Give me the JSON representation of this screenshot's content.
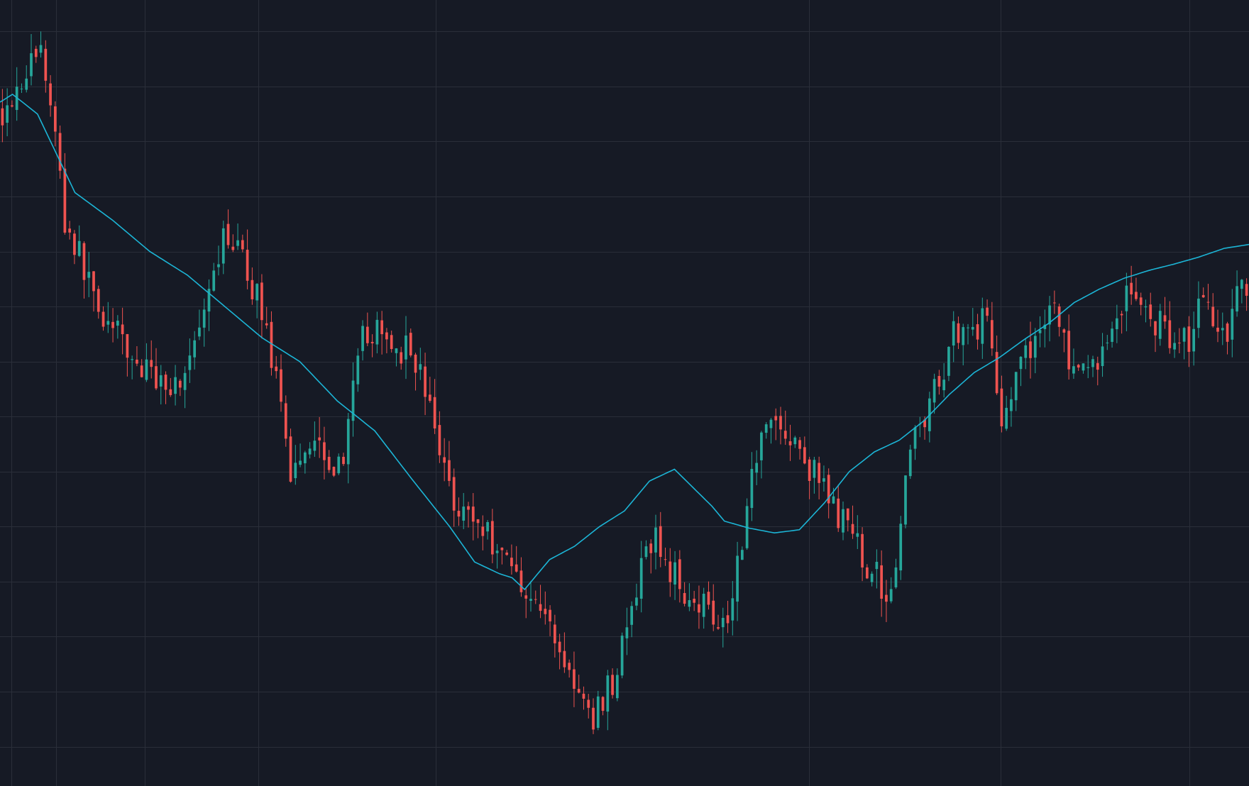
{
  "theme": {
    "background": "#161a25",
    "grid_color": "#2a2e39",
    "up_color": "#26a69a",
    "down_color": "#ef5350",
    "ma_color": "#1cb5d6"
  },
  "chart_data": {
    "type": "candlestick",
    "title": "",
    "xlabel": "",
    "ylabel": "",
    "grid": true,
    "legend": "none",
    "axes_visible": false,
    "price_range": [
      0,
      100
    ],
    "grid_values": {
      "price": [
        96,
        89,
        82,
        75,
        68,
        61,
        54,
        47,
        40,
        33,
        26,
        19,
        12,
        5
      ],
      "index": [
        0.9,
        4.5,
        11.6,
        20.7,
        34.9,
        64.8,
        80.1,
        95.2
      ]
    },
    "close_anchors": [
      [
        0,
        86
      ],
      [
        3,
        94
      ],
      [
        4,
        86
      ],
      [
        5,
        72
      ],
      [
        8,
        60
      ],
      [
        11,
        53
      ],
      [
        14,
        51
      ],
      [
        16,
        58
      ],
      [
        18,
        71
      ],
      [
        21,
        60
      ],
      [
        23,
        40
      ],
      [
        25,
        45
      ],
      [
        27,
        40
      ],
      [
        29,
        58
      ],
      [
        33,
        55
      ],
      [
        36,
        37
      ],
      [
        40,
        30
      ],
      [
        44,
        20
      ],
      [
        47,
        8
      ],
      [
        49,
        14
      ],
      [
        52,
        32
      ],
      [
        54,
        26
      ],
      [
        58,
        21
      ],
      [
        61,
        48
      ],
      [
        64,
        42
      ],
      [
        66,
        37
      ],
      [
        69,
        29
      ],
      [
        71,
        24
      ],
      [
        73,
        45
      ],
      [
        75,
        51
      ],
      [
        76,
        58
      ],
      [
        79,
        59
      ],
      [
        80,
        47
      ],
      [
        84,
        62
      ],
      [
        86,
        51
      ],
      [
        88,
        55
      ],
      [
        90,
        63
      ],
      [
        93,
        58
      ],
      [
        95,
        57
      ],
      [
        96,
        62
      ],
      [
        98,
        58
      ],
      [
        99,
        64
      ]
    ],
    "moving_average": {
      "anchors": [
        [
          0,
          87
        ],
        [
          1,
          88
        ],
        [
          3,
          85.5
        ],
        [
          6,
          75.5
        ],
        [
          9,
          72
        ],
        [
          12,
          68
        ],
        [
          15,
          65
        ],
        [
          18,
          61
        ],
        [
          21,
          57
        ],
        [
          24,
          54
        ],
        [
          27,
          49
        ],
        [
          30,
          45.2
        ],
        [
          33,
          39
        ],
        [
          36,
          33
        ],
        [
          38,
          28.5
        ],
        [
          40,
          27
        ],
        [
          41,
          26.5
        ],
        [
          42,
          25
        ],
        [
          44,
          28.8
        ],
        [
          46,
          30.5
        ],
        [
          48,
          33
        ],
        [
          50,
          35
        ],
        [
          52,
          38.8
        ],
        [
          54,
          40.3
        ],
        [
          57,
          35.6
        ],
        [
          58,
          33.7
        ],
        [
          60,
          32.8
        ],
        [
          62,
          32.2
        ],
        [
          64,
          32.6
        ],
        [
          66,
          36
        ],
        [
          68,
          40
        ],
        [
          70,
          42.5
        ],
        [
          72,
          44
        ],
        [
          74,
          46.5
        ],
        [
          76,
          49.8
        ],
        [
          78,
          52.6
        ],
        [
          80,
          54.5
        ],
        [
          82,
          56.8
        ],
        [
          84,
          58.9
        ],
        [
          86,
          61.5
        ],
        [
          88,
          63.2
        ],
        [
          90,
          64.6
        ],
        [
          92,
          65.6
        ],
        [
          94,
          66.4
        ],
        [
          96,
          67.3
        ],
        [
          98,
          68.4
        ],
        [
          100,
          68.9
        ]
      ]
    },
    "candles_generated": 260
  }
}
